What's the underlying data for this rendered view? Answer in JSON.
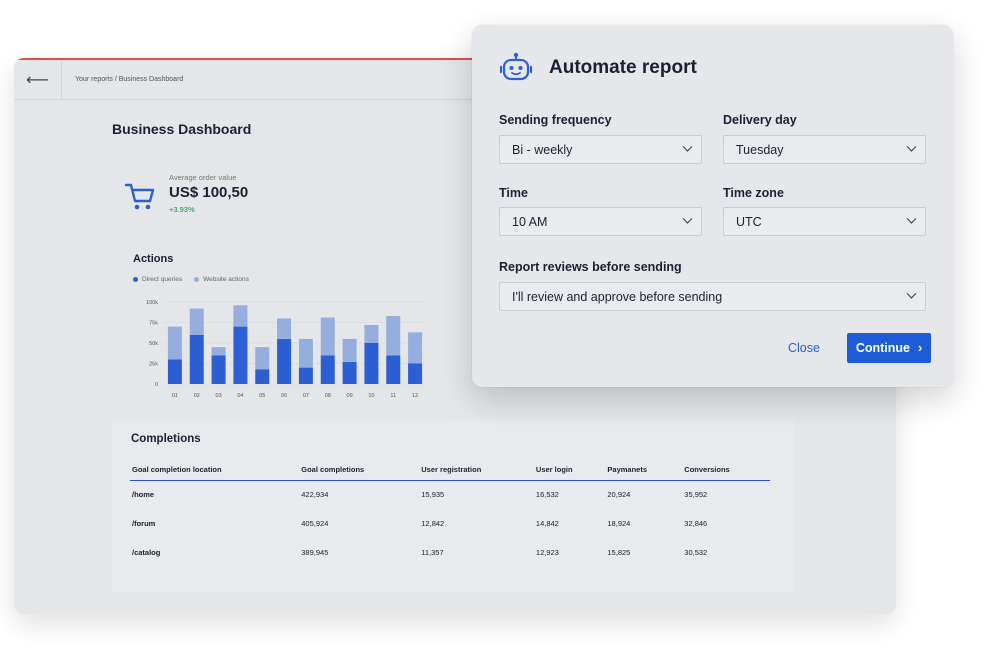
{
  "breadcrumb": "Your reports / Business Dashboard",
  "page_title": "Business Dashboard",
  "kpi": {
    "label": "Average order value",
    "value": "US$ 100,50",
    "delta": "+3.93%"
  },
  "actions": {
    "title": "Actions",
    "legend": [
      "Direct queries",
      "Website actions"
    ]
  },
  "chart_data": {
    "type": "bar",
    "stacked": true,
    "title": "Actions",
    "categories": [
      "01",
      "02",
      "03",
      "04",
      "05",
      "06",
      "07",
      "08",
      "09",
      "10",
      "11",
      "12"
    ],
    "series": [
      {
        "name": "Direct queries",
        "color": "#2d5fd4",
        "values": [
          30,
          60,
          35,
          70,
          18,
          55,
          20,
          35,
          27,
          50,
          35,
          25
        ]
      },
      {
        "name": "Website actions",
        "color": "#95aede",
        "values": [
          40,
          32,
          10,
          26,
          27,
          25,
          35,
          46,
          28,
          22,
          48,
          38
        ]
      }
    ],
    "yticks": [
      "0",
      "25k",
      "50k",
      "75k",
      "100k"
    ],
    "ylim": [
      0,
      100
    ],
    "grid": true
  },
  "completions": {
    "title": "Completions",
    "columns": [
      "Goal completion location",
      "Goal completions",
      "User registration",
      "User login",
      "Paymanets",
      "Conversions"
    ],
    "rows": [
      [
        "/home",
        "422,934",
        "15,935",
        "16,532",
        "20,924",
        "35,952"
      ],
      [
        "/forum",
        "405,924",
        "12,842",
        "14,842",
        "18,924",
        "32,846"
      ],
      [
        "/catalog",
        "389,945",
        "11,357",
        "12,923",
        "15,825",
        "30,532"
      ]
    ]
  },
  "modal": {
    "title": "Automate report",
    "frequency_label": "Sending frequency",
    "frequency_value": "Bi - weekly",
    "day_label": "Delivery day",
    "day_value": "Tuesday",
    "time_label": "Time",
    "time_value": "10 AM",
    "tz_label": "Time zone",
    "tz_value": "UTC",
    "review_label": "Report reviews before sending",
    "review_value": "I'll review and approve before sending",
    "close": "Close",
    "continue": "Continue"
  },
  "colors": {
    "accent": "#1e5cd7",
    "positive": "#1e8e3e",
    "series_dark": "#2d5fd4",
    "series_light": "#95aede"
  },
  "icons": [
    "back-arrow-icon",
    "cart-icon",
    "robot-icon",
    "chevron-down-icon",
    "chevron-right-icon"
  ]
}
